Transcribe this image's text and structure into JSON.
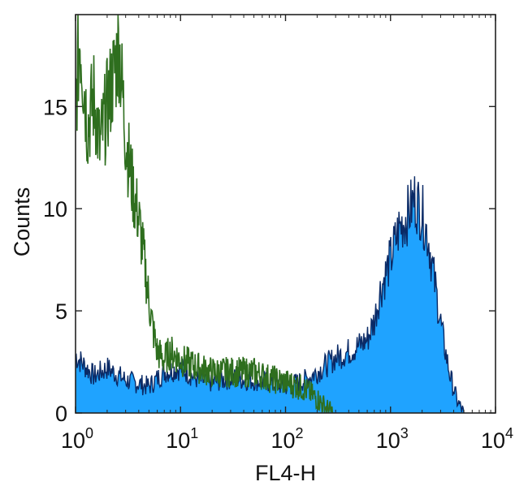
{
  "chart_data": {
    "type": "area",
    "xlabel": "FL4-H",
    "ylabel": "Counts",
    "xscale": "log",
    "xlim": [
      1,
      10000
    ],
    "ylim": [
      0,
      19.5
    ],
    "grid": false,
    "legend": "none",
    "x_ticks": [
      {
        "base": "10",
        "exp": "0",
        "value": 1
      },
      {
        "base": "10",
        "exp": "1",
        "value": 10
      },
      {
        "base": "10",
        "exp": "2",
        "value": 100
      },
      {
        "base": "10",
        "exp": "3",
        "value": 1000
      },
      {
        "base": "10",
        "exp": "4",
        "value": 10000
      }
    ],
    "y_ticks": [
      {
        "label": "0",
        "value": 0
      },
      {
        "label": "5",
        "value": 5
      },
      {
        "label": "10",
        "value": 10
      },
      {
        "label": "15",
        "value": 15
      }
    ],
    "series": [
      {
        "style": "filled",
        "fill_color": "#1fa3ff",
        "line_color": "#0a2a66",
        "points": [
          [
            1.0,
            2.8
          ],
          [
            1.5,
            1.8
          ],
          [
            2,
            2.2
          ],
          [
            3,
            1.6
          ],
          [
            5,
            1.3
          ],
          [
            7,
            2.0
          ],
          [
            10,
            2.2
          ],
          [
            15,
            1.6
          ],
          [
            20,
            1.5
          ],
          [
            30,
            1.7
          ],
          [
            50,
            1.6
          ],
          [
            70,
            1.5
          ],
          [
            100,
            1.3
          ],
          [
            150,
            1.6
          ],
          [
            200,
            2.0
          ],
          [
            300,
            2.7
          ],
          [
            400,
            3.0
          ],
          [
            500,
            3.3
          ],
          [
            600,
            3.6
          ],
          [
            700,
            4.5
          ],
          [
            800,
            6.0
          ],
          [
            1000,
            7.5
          ],
          [
            1200,
            9.0
          ],
          [
            1500,
            9.8
          ],
          [
            1700,
            10.5
          ],
          [
            2000,
            9.8
          ],
          [
            2300,
            8.5
          ],
          [
            2700,
            6.0
          ],
          [
            3200,
            3.5
          ],
          [
            3700,
            1.8
          ],
          [
            4300,
            0.6
          ],
          [
            5000,
            0.0
          ]
        ]
      },
      {
        "style": "outline",
        "line_color": "#2e6e1e",
        "points": [
          [
            1.0,
            15.0
          ],
          [
            1.1,
            18.5
          ],
          [
            1.3,
            14.0
          ],
          [
            1.5,
            15.5
          ],
          [
            1.7,
            13.0
          ],
          [
            2.0,
            15.0
          ],
          [
            2.3,
            16.5
          ],
          [
            2.6,
            18.0
          ],
          [
            3.0,
            13.5
          ],
          [
            3.5,
            11.0
          ],
          [
            4.0,
            9.5
          ],
          [
            4.5,
            7.5
          ],
          [
            5.0,
            5.5
          ],
          [
            5.5,
            4.0
          ],
          [
            6.0,
            3.0
          ],
          [
            7.0,
            2.6
          ],
          [
            8.0,
            3.0
          ],
          [
            10,
            2.6
          ],
          [
            15,
            2.2
          ],
          [
            20,
            2.0
          ],
          [
            30,
            2.0
          ],
          [
            50,
            2.0
          ],
          [
            70,
            1.7
          ],
          [
            100,
            1.5
          ],
          [
            150,
            1.2
          ],
          [
            200,
            0.7
          ],
          [
            250,
            0.2
          ],
          [
            280,
            0.0
          ]
        ]
      }
    ]
  }
}
